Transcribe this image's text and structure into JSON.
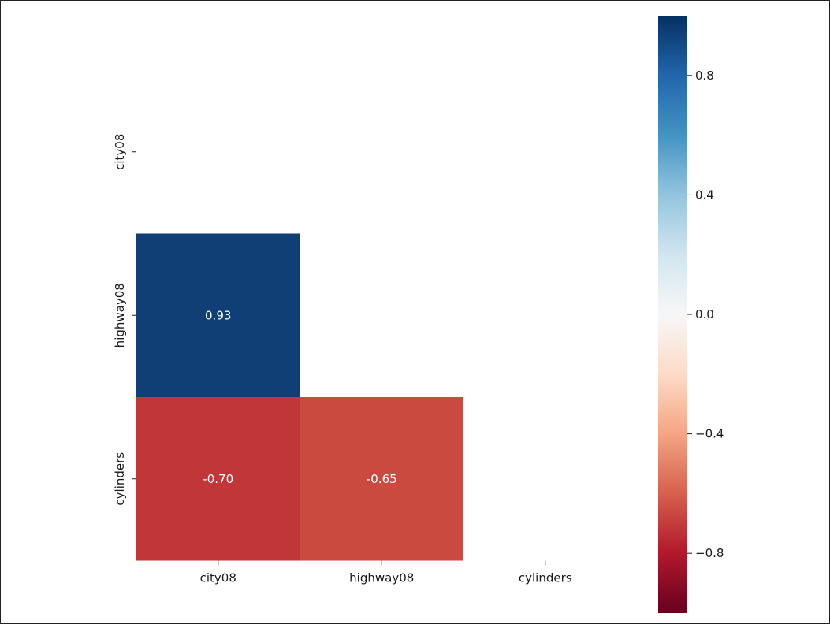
{
  "chart_data": {
    "type": "heatmap",
    "title": "",
    "xlabel": "",
    "ylabel": "",
    "rows": [
      "city08",
      "highway08",
      "cylinders"
    ],
    "columns": [
      "city08",
      "highway08",
      "cylinders"
    ],
    "mask": "upper-triangle-and-diagonal",
    "cells": [
      {
        "row": "highway08",
        "column": "city08",
        "value": 0.93,
        "label": "0.93"
      },
      {
        "row": "cylinders",
        "column": "city08",
        "value": -0.7,
        "label": "-0.70"
      },
      {
        "row": "cylinders",
        "column": "highway08",
        "value": -0.65,
        "label": "-0.65"
      }
    ],
    "colormap": "RdBu",
    "vmin": -1,
    "vmax": 1,
    "colorbar": {
      "ticks": [
        0.8,
        0.4,
        0.0,
        -0.4,
        -0.8
      ],
      "tick_labels": [
        "0.8",
        "0.4",
        "0.0",
        "−0.4",
        "−0.8"
      ],
      "placement": "right"
    },
    "colors": {
      "cell_highway08_city08": "#0f3f74",
      "cell_cylinders_city08": "#c13639",
      "cell_cylinders_highway08": "#cb4a40"
    }
  }
}
